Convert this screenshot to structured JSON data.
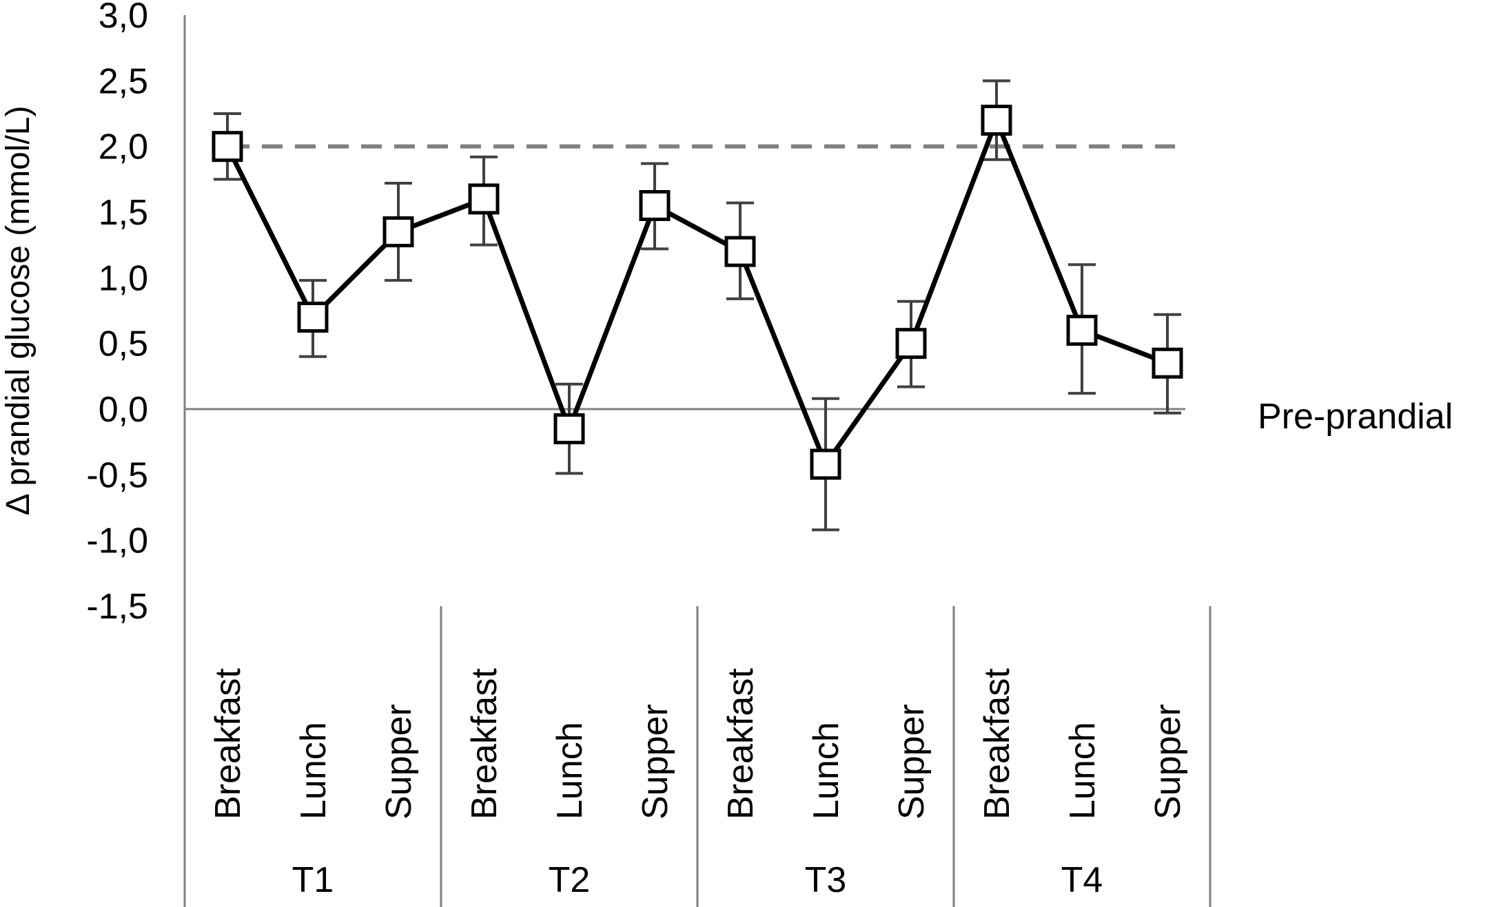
{
  "chart_data": {
    "type": "line",
    "title": "",
    "ylabel": "Δ prandial  glucose  (mmol/L)",
    "xlabel": "",
    "ylim": [
      -1.5,
      3.0
    ],
    "yticks": [
      3.0,
      2.5,
      2.0,
      1.5,
      1.0,
      0.5,
      0.0,
      -0.5,
      -1.0,
      -1.5
    ],
    "ytick_labels": [
      "3,0",
      "2,5",
      "2,0",
      "1,5",
      "1,0",
      "0,5",
      "0,0",
      "-0,5",
      "-1,0",
      "-1,5"
    ],
    "groups": [
      {
        "label": "T1",
        "categories": [
          "Breakfast",
          "Lunch",
          "Supper"
        ]
      },
      {
        "label": "T2",
        "categories": [
          "Breakfast",
          "Lunch",
          "Supper"
        ]
      },
      {
        "label": "T3",
        "categories": [
          "Breakfast",
          "Lunch",
          "Supper"
        ]
      },
      {
        "label": "T4",
        "categories": [
          "Breakfast",
          "Lunch",
          "Supper"
        ]
      }
    ],
    "series": [
      {
        "values": [
          2.0,
          0.7,
          1.35,
          1.6,
          -0.15,
          1.55,
          1.2,
          -0.42,
          0.5,
          2.2,
          0.6,
          0.35
        ],
        "error_low": [
          1.75,
          0.4,
          0.98,
          1.25,
          -0.49,
          1.22,
          0.84,
          -0.92,
          0.17,
          1.9,
          0.12,
          -0.03
        ],
        "error_high": [
          2.25,
          0.98,
          1.72,
          1.92,
          0.19,
          1.87,
          1.57,
          0.08,
          0.82,
          2.5,
          1.1,
          0.72
        ],
        "marker": "open-square",
        "color": "#000000"
      }
    ],
    "reference_lines": [
      {
        "y": 2.0,
        "style": "dashed",
        "color": "#808080"
      },
      {
        "y": 0.0,
        "style": "solid",
        "color": "#808080",
        "label": "Pre-prandial"
      }
    ],
    "grid": false,
    "legend": "none"
  }
}
